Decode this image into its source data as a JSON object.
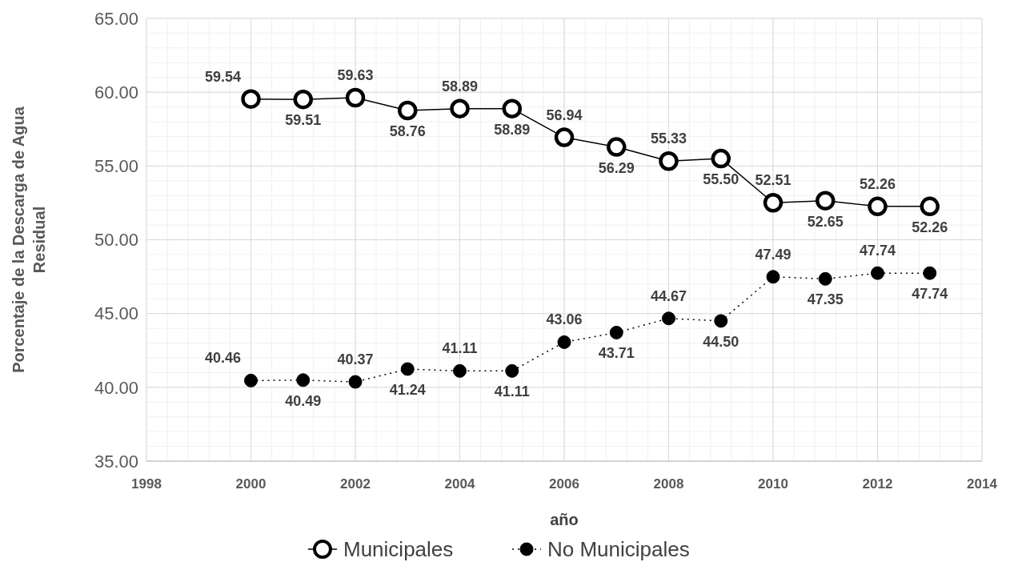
{
  "chart_data": {
    "type": "line",
    "xlabel": "año",
    "ylabel": "Porcentaje de la Descarga de Agua Residual",
    "x": [
      2000,
      2001,
      2002,
      2003,
      2004,
      2005,
      2006,
      2007,
      2008,
      2009,
      2010,
      2011,
      2012,
      2013
    ],
    "series": [
      {
        "name": "Municipales",
        "color": "#000000",
        "line_style": "solid",
        "marker": "circle",
        "values": [
          59.54,
          59.51,
          59.63,
          58.76,
          58.89,
          58.89,
          56.94,
          56.29,
          55.33,
          55.5,
          52.51,
          52.65,
          52.26,
          52.26
        ],
        "value_labels": [
          "59.54",
          "59.51",
          "59.63",
          "58.76",
          "58.89",
          "58.89",
          "56.94",
          "56.29",
          "55.33",
          "55.50",
          "52.51",
          "52.65",
          "52.26",
          "52.26"
        ]
      },
      {
        "name": "No Municipales",
        "color": "#000000",
        "line_style": "dotted",
        "marker": "circle",
        "values": [
          40.46,
          40.49,
          40.37,
          41.24,
          41.11,
          41.11,
          43.06,
          43.71,
          44.67,
          44.5,
          47.49,
          47.35,
          47.74,
          47.74
        ],
        "value_labels": [
          "40.46",
          "40.49",
          "40.37",
          "41.24",
          "41.11",
          "41.11",
          "43.06",
          "43.71",
          "44.67",
          "44.50",
          "47.49",
          "47.35",
          "47.74",
          "47.74"
        ]
      }
    ],
    "xlim": [
      1998,
      2014
    ],
    "xticks": [
      1998,
      2000,
      2002,
      2004,
      2006,
      2008,
      2010,
      2012,
      2014
    ],
    "ylim": [
      35,
      65
    ],
    "yticks": [
      {
        "value": 35,
        "label": "35.00"
      },
      {
        "value": 40,
        "label": "40.00"
      },
      {
        "value": 45,
        "label": "45.00"
      },
      {
        "value": 50,
        "label": "50.00"
      },
      {
        "value": 55,
        "label": "55.00"
      },
      {
        "value": 60,
        "label": "60.00"
      },
      {
        "value": 65,
        "label": "65.00"
      }
    ],
    "grid": true,
    "legend": "bottom"
  }
}
